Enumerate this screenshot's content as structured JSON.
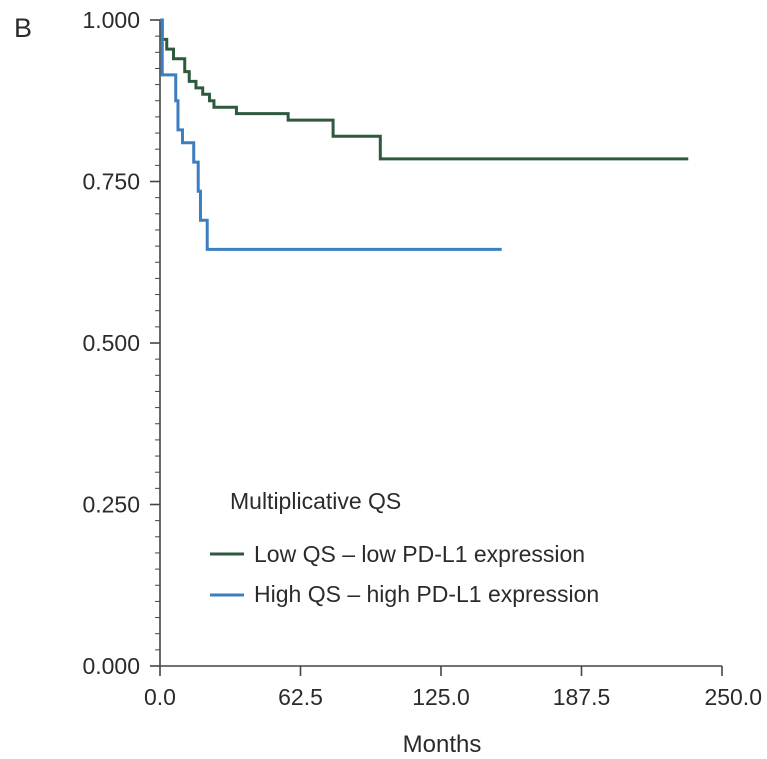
{
  "panel_label": "B",
  "chart_data": {
    "type": "line",
    "xlabel": "Months",
    "ylabel": "",
    "xlim": [
      0,
      250
    ],
    "ylim": [
      0,
      1
    ],
    "x_ticks": [
      "0.0",
      "62.5",
      "125.0",
      "187.5",
      "250.0"
    ],
    "x_tick_values": [
      0,
      62.5,
      125,
      187.5,
      250
    ],
    "y_ticks": [
      "0.000",
      "0.250",
      "0.500",
      "0.750",
      "1.000"
    ],
    "y_tick_values": [
      0,
      0.25,
      0.5,
      0.75,
      1
    ],
    "y_minor_step": 0.025,
    "legend": {
      "title": "Multiplicative QS",
      "position": "bottom-right"
    },
    "series": [
      {
        "name": "Low QS – low PD-L1 expression",
        "color": "#2d5a3d",
        "step": true,
        "points": [
          [
            0,
            1.0
          ],
          [
            1,
            0.97
          ],
          [
            3,
            0.955
          ],
          [
            6,
            0.94
          ],
          [
            11,
            0.92
          ],
          [
            13,
            0.905
          ],
          [
            16,
            0.895
          ],
          [
            19,
            0.885
          ],
          [
            22,
            0.875
          ],
          [
            24,
            0.865
          ],
          [
            34,
            0.855
          ],
          [
            57,
            0.845
          ],
          [
            77,
            0.82
          ],
          [
            98,
            0.785
          ],
          [
            235,
            0.785
          ]
        ]
      },
      {
        "name": "High QS – high PD-L1 expression",
        "color": "#3b7fc0",
        "step": true,
        "points": [
          [
            0,
            1.0
          ],
          [
            1,
            0.915
          ],
          [
            7,
            0.875
          ],
          [
            8,
            0.83
          ],
          [
            10,
            0.81
          ],
          [
            15,
            0.78
          ],
          [
            17,
            0.735
          ],
          [
            18,
            0.69
          ],
          [
            21,
            0.645
          ],
          [
            152,
            0.645
          ]
        ]
      }
    ]
  }
}
